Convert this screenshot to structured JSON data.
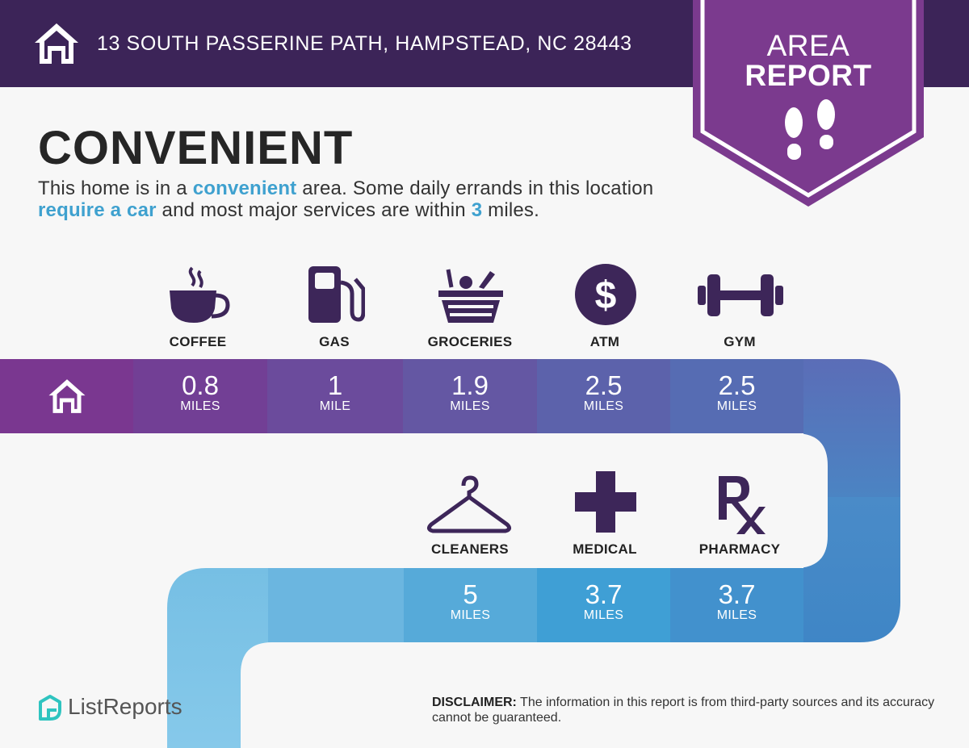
{
  "header": {
    "address": "13 SOUTH PASSERINE PATH, HAMPSTEAD, NC 28443"
  },
  "badge": {
    "line1": "AREA",
    "line2": "REPORT",
    "icon": "footprints-icon"
  },
  "title": "CONVENIENT",
  "description": {
    "p1": "This home is in a ",
    "h1": "convenient",
    "p2": " area. Some daily errands in this location ",
    "h2": "require a car",
    "p3": " and most major services are within ",
    "h3": "3",
    "p4": " miles."
  },
  "categories_row1": [
    {
      "label": "COFFEE",
      "distance": "0.8",
      "unit": "MILES",
      "icon": "coffee-icon"
    },
    {
      "label": "GAS",
      "distance": "1",
      "unit": "MILE",
      "icon": "gas-pump-icon"
    },
    {
      "label": "GROCERIES",
      "distance": "1.9",
      "unit": "MILES",
      "icon": "grocery-basket-icon"
    },
    {
      "label": "ATM",
      "distance": "2.5",
      "unit": "MILES",
      "icon": "dollar-icon"
    },
    {
      "label": "GYM",
      "distance": "2.5",
      "unit": "MILES",
      "icon": "dumbbell-icon"
    }
  ],
  "categories_row2": [
    {
      "label": "CLEANERS",
      "distance": "5",
      "unit": "MILES",
      "icon": "hanger-icon"
    },
    {
      "label": "MEDICAL",
      "distance": "3.7",
      "unit": "MILES",
      "icon": "medical-cross-icon"
    },
    {
      "label": "PHARMACY",
      "distance": "3.7",
      "unit": "MILES",
      "icon": "rx-icon"
    }
  ],
  "footer": {
    "brand": "ListReports",
    "disclaimer_label": "DISCLAIMER:",
    "disclaimer_text": " The information in this report is from third-party sources and its accuracy cannot be guaranteed."
  },
  "colors": {
    "header": "#3c2458",
    "badge": "#7b3a8e",
    "icon": "#3d2659",
    "highlight": "#3fa1cf"
  }
}
